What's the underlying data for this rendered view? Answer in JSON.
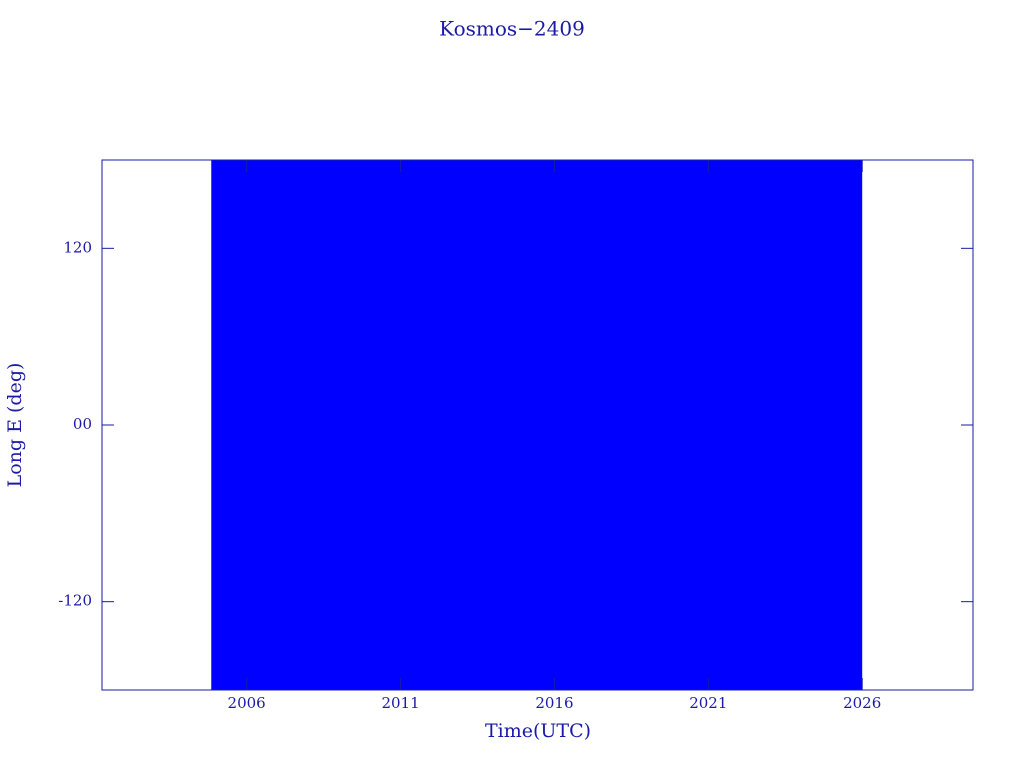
{
  "chart_data": {
    "type": "range",
    "title": "Kosmos−2409",
    "x_label": "Time(UTC)",
    "y_label": "Long E (deg)",
    "x": [
      2004.85,
      2026.0
    ],
    "low": [
      -180,
      -180
    ],
    "high": [
      180,
      180
    ],
    "color": "#0000ff",
    "axis_color": "#1a1aa6",
    "xlim": [
      2001.3,
      2029.6
    ],
    "xticks": [
      2006,
      2011,
      2016,
      2021,
      2026
    ],
    "ylim": [
      -180,
      180
    ],
    "yticks": [
      -120,
      {
        "value": 0,
        "label": "00"
      },
      120
    ]
  }
}
